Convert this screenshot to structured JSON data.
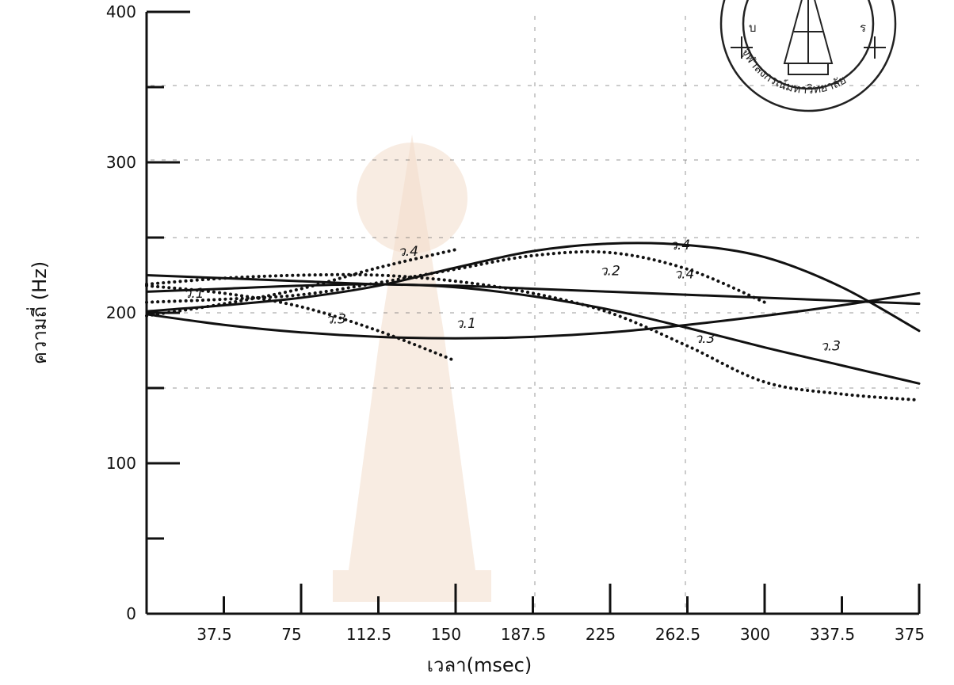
{
  "chart_data": {
    "type": "line",
    "xlabel": "เวลา(msec)",
    "ylabel": "ความถี่ (Hz)",
    "xlim": [
      0,
      375
    ],
    "ylim": [
      0,
      400
    ],
    "x_ticks": [
      "37.5",
      "75",
      "112.5",
      "150",
      "187.5",
      "225",
      "262.5",
      "300",
      "337.5",
      "375"
    ],
    "y_ticks": [
      "0",
      "100",
      "200",
      "300",
      "400"
    ],
    "grid": true,
    "series": [
      {
        "name": "ว.1",
        "style": "solid",
        "x": [
          0,
          37.5,
          75,
          112.5,
          150,
          187.5,
          225,
          262.5,
          300,
          337.5,
          375
        ],
        "y": [
          199,
          192,
          187,
          184,
          183,
          184,
          187,
          192,
          198,
          205,
          213
        ]
      },
      {
        "name": "ว.2",
        "style": "solid",
        "x": [
          0,
          37.5,
          75,
          112.5,
          150,
          187.5,
          225,
          262.5,
          300,
          337.5,
          375
        ],
        "y": [
          225,
          223,
          221,
          219,
          218,
          216,
          214,
          212,
          210,
          208,
          206
        ]
      },
      {
        "name": "ว.3",
        "style": "solid",
        "x": [
          0,
          37.5,
          75,
          112.5,
          150,
          187.5,
          225,
          262.5,
          300,
          337.5,
          375
        ],
        "y": [
          214,
          216,
          218,
          219,
          217,
          211,
          202,
          190,
          177,
          165,
          153
        ]
      },
      {
        "name": "ว.4",
        "style": "solid",
        "x": [
          0,
          37.5,
          75,
          112.5,
          150,
          187.5,
          225,
          262.5,
          300,
          337.5,
          375
        ],
        "y": [
          201,
          205,
          210,
          218,
          230,
          241,
          246,
          245,
          237,
          217,
          188
        ]
      },
      {
        "name": "ว.3",
        "style": "dotted",
        "x": [
          0,
          37.5,
          75,
          112.5,
          150,
          187.5,
          225,
          262.5,
          300,
          337.5,
          375
        ],
        "y": [
          219,
          223,
          225,
          225,
          221,
          213,
          200,
          178,
          154,
          146,
          142
        ]
      },
      {
        "name": "ว.4",
        "style": "dotted",
        "x": [
          0,
          37.5,
          75,
          112.5,
          150,
          187.5,
          225,
          262.5,
          300
        ],
        "y": [
          207,
          209,
          212,
          220,
          229,
          238,
          240,
          229,
          207
        ]
      },
      {
        "name": "ว.3",
        "style": "dotted",
        "x": [
          0,
          37.5,
          75,
          112.5,
          150
        ],
        "y": [
          218,
          213,
          204,
          188,
          168
        ]
      },
      {
        "name": "ว.4",
        "style": "dotted",
        "x": [
          0,
          37.5,
          75,
          112.5,
          150
        ],
        "y": [
          198,
          206,
          216,
          230,
          242
        ]
      }
    ],
    "annotations": [
      "ว.1",
      "ว.1",
      "ว.3",
      "ว.4",
      "ว.2",
      "ว.4",
      "ว.4",
      "ว.3",
      "ว.3"
    ]
  },
  "seal": {
    "text": "จุฬาลงกรณ์มหาวิทยาลัย",
    "edge_chars": [
      "ร",
      "บ"
    ]
  }
}
